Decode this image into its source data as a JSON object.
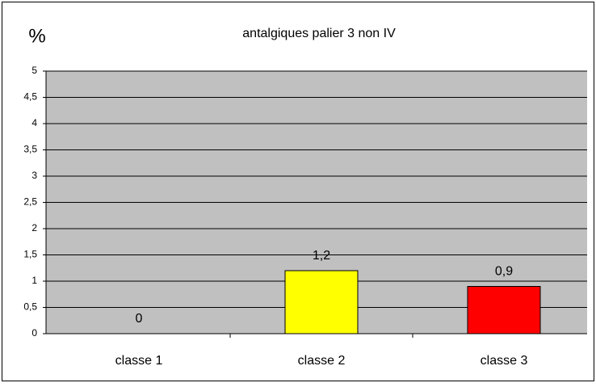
{
  "chart_data": {
    "type": "bar",
    "title": "antalgiques palier 3 non IV",
    "ylabel": "%",
    "categories": [
      "classe 1",
      "classe 2",
      "classe 3"
    ],
    "values": [
      0,
      1.2,
      0.9
    ],
    "value_labels": [
      "0",
      "1,2",
      "0,9"
    ],
    "colors": [
      "#0000ff",
      "#ffff00",
      "#ff0000"
    ],
    "ylim": [
      0,
      5
    ],
    "yticks": [
      0,
      {
        "value": 0.5,
        "label": "0,5"
      },
      1,
      {
        "value": 1.5,
        "label": "1,5"
      },
      2,
      {
        "value": 2.5,
        "label": "2,5"
      },
      3,
      {
        "value": 3.5,
        "label": "3,5"
      },
      4,
      {
        "value": 4.5,
        "label": "4,5"
      },
      5
    ],
    "grid": true,
    "plot_background": "#c0c0c0"
  }
}
